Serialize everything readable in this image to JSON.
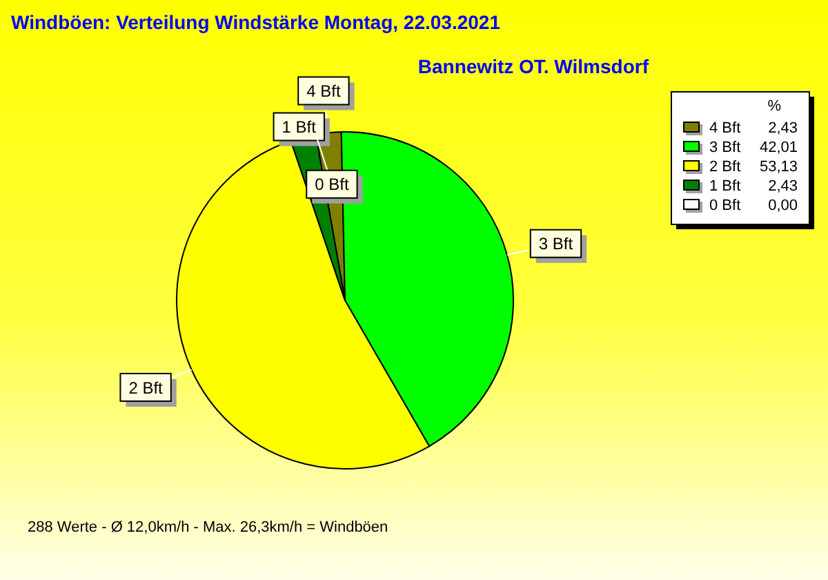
{
  "chart_data": {
    "type": "pie",
    "title": "Windböen: Verteilung Windstärke  Montag, 22.03.2021",
    "subtitle": "Bannewitz OT. Wilmsdorf",
    "categories": [
      "4 Bft",
      "3 Bft",
      "2 Bft",
      "1 Bft",
      "0 Bft"
    ],
    "values": [
      2.43,
      42.01,
      53.13,
      2.43,
      0.0
    ],
    "value_labels": [
      "2,43",
      "42,01",
      "53,13",
      "2,43",
      "0,00"
    ],
    "colors": [
      "#808000",
      "#00ff00",
      "#ffff00",
      "#008000",
      "#ffffff"
    ],
    "legend": "top right",
    "legend_title": "%",
    "annotations": [
      "288 Werte   -   Ø 12,0km/h  -  Max. 26,3km/h = Windböen"
    ]
  }
}
